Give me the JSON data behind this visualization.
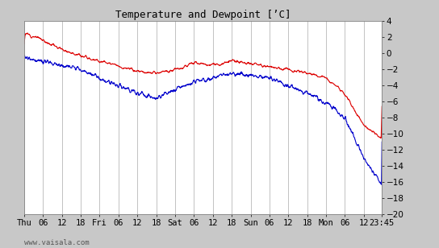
{
  "title": "Temperature and Dewpoint [’C]",
  "xlabel_bottom": "www.vaisala.com",
  "ylim": [
    -20,
    4
  ],
  "yticks": [
    -20,
    -18,
    -16,
    -14,
    -12,
    -10,
    -8,
    -6,
    -4,
    -2,
    0,
    2,
    4
  ],
  "bg_color": "#c8c8c8",
  "plot_bg_color": "#ffffff",
  "grid_color": "#aaaaaa",
  "temp_color": "#dd0000",
  "dewp_color": "#0000cc",
  "line_width": 0.8,
  "x_tick_labels": [
    "Thu",
    "06",
    "12",
    "18",
    "Fri",
    "06",
    "12",
    "18",
    "Sat",
    "06",
    "12",
    "18",
    "Sun",
    "06",
    "12",
    "18",
    "Mon",
    "06",
    "12",
    "23:45"
  ],
  "x_tick_positions": [
    0,
    6,
    12,
    18,
    24,
    30,
    36,
    42,
    48,
    54,
    60,
    66,
    72,
    78,
    84,
    90,
    96,
    102,
    108,
    113.75
  ],
  "total_hours": 113.75
}
